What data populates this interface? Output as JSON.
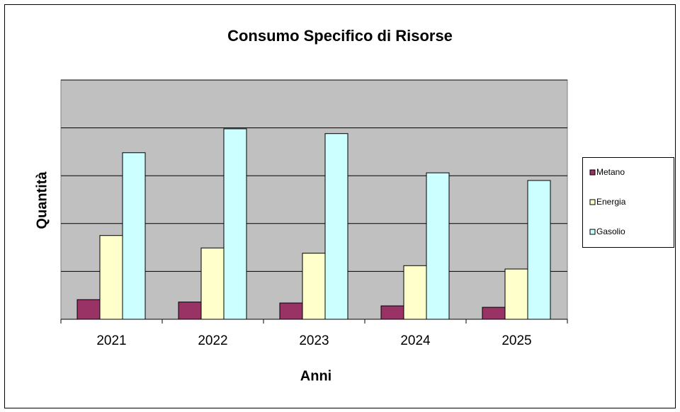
{
  "chart_data": {
    "type": "bar",
    "title": "Consumo Specifico di Risorse",
    "x_label": "Anni",
    "y_label": "Quantità",
    "categories": [
      "2021",
      "2022",
      "2023",
      "2024",
      "2025"
    ],
    "series": [
      {
        "name": "Metano",
        "color": "#993366",
        "values": [
          0.41,
          0.36,
          0.34,
          0.28,
          0.25
        ]
      },
      {
        "name": "Energia",
        "color": "#ffffcc",
        "values": [
          1.75,
          1.49,
          1.38,
          1.12,
          1.05
        ]
      },
      {
        "name": "Gasolio",
        "color": "#ccffff",
        "values": [
          3.48,
          3.98,
          3.88,
          3.06,
          2.9
        ]
      }
    ],
    "ylim": [
      0,
      5
    ],
    "yticks": [
      0,
      1,
      2,
      3,
      4,
      5
    ],
    "grid": true,
    "legend": "right",
    "plot_background": "#c0c0c0"
  }
}
